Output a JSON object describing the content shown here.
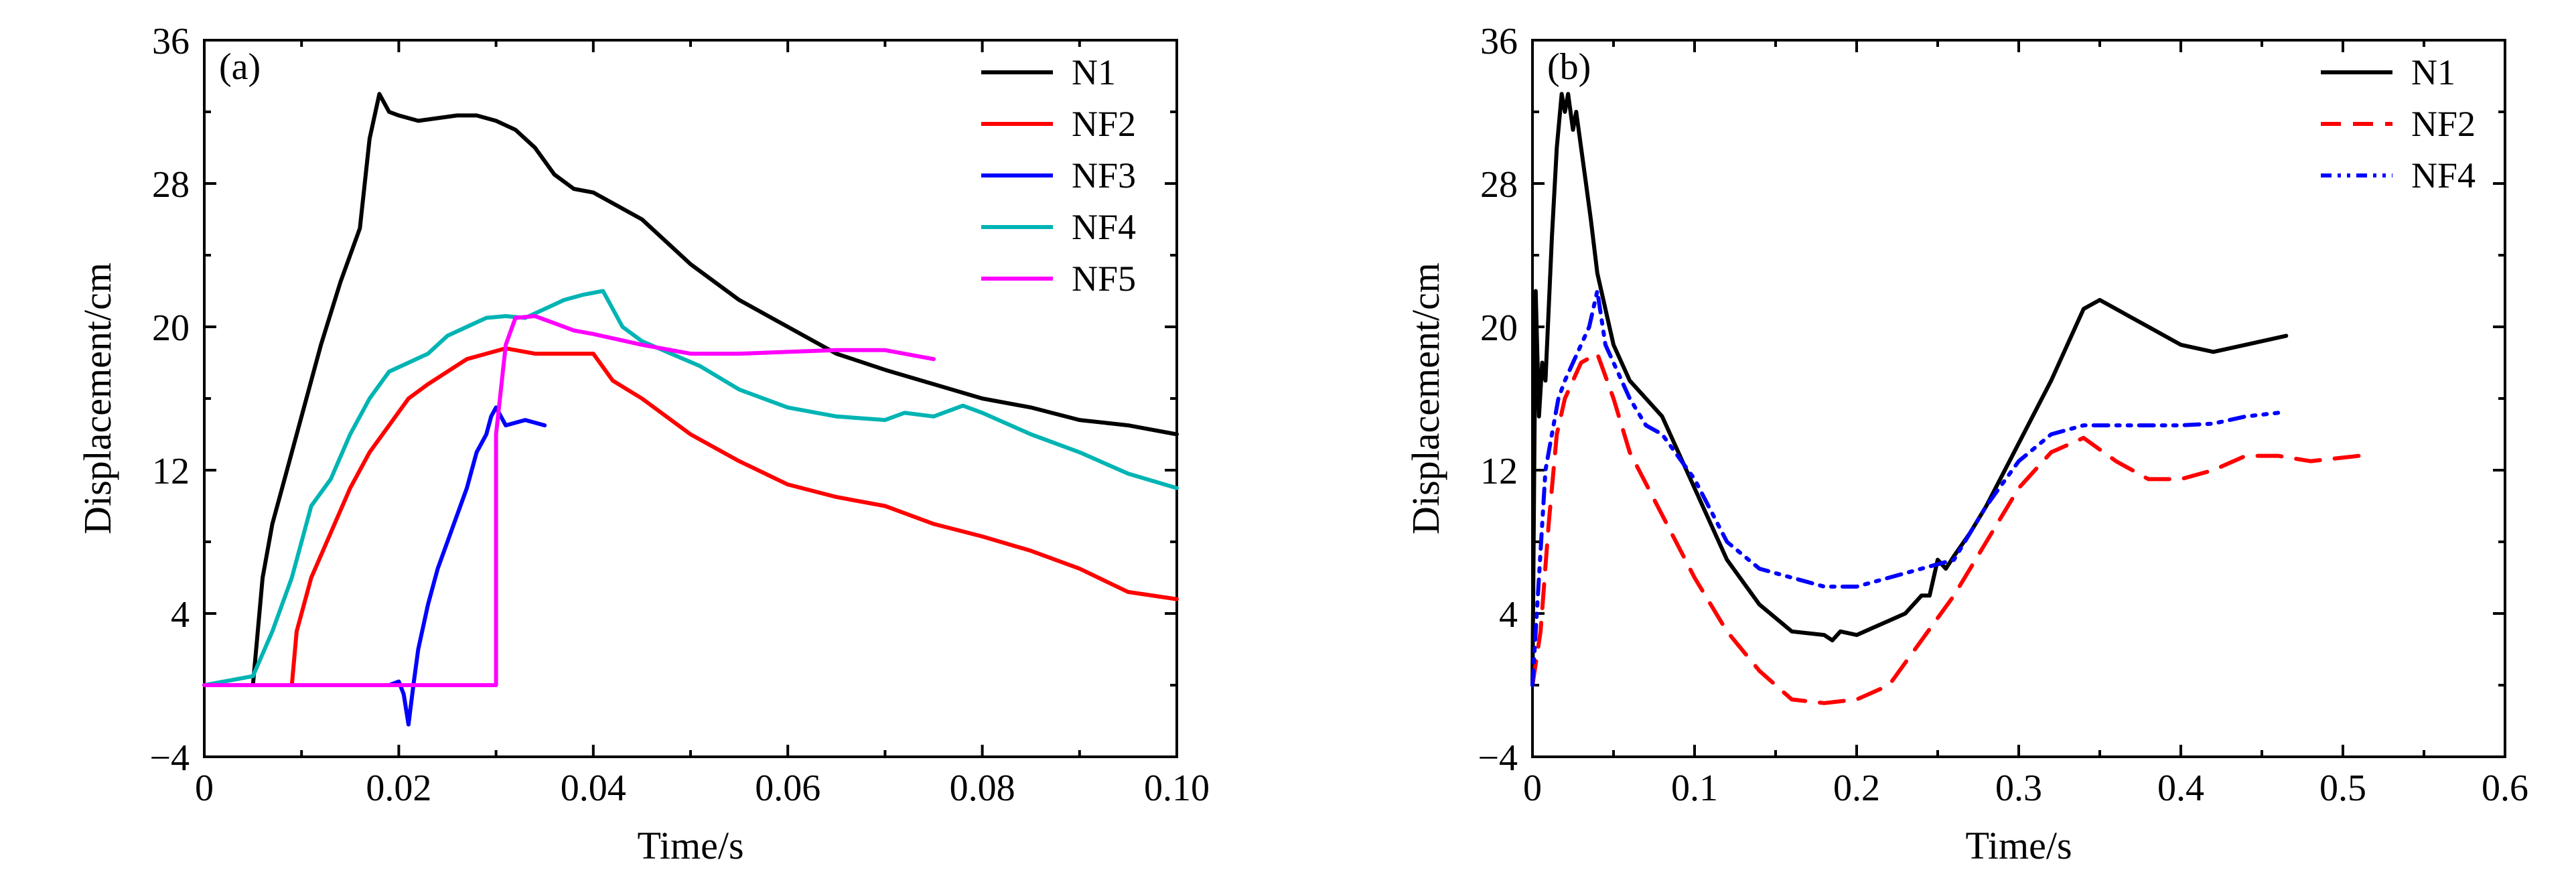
{
  "chart_data": [
    {
      "panel_label": "(a)",
      "type": "line",
      "xlabel": "Time/s",
      "ylabel": "Displacement/cm",
      "xlim": [
        0,
        0.1
      ],
      "ylim": [
        -4,
        36
      ],
      "xticks": [
        0,
        0.02,
        0.04,
        0.06,
        0.08,
        0.1
      ],
      "xtick_labels": [
        "0",
        "0.02",
        "0.04",
        "0.06",
        "0.08",
        "0.10"
      ],
      "yticks": [
        -4,
        4,
        12,
        20,
        28,
        36
      ],
      "ytick_labels": [
        "−4",
        "4",
        "12",
        "20",
        "28",
        "36"
      ],
      "grid": false,
      "legend_position": "top-right",
      "series": [
        {
          "name": "N1",
          "color": "#000000",
          "dash": "solid",
          "x": [
            0,
            0.005,
            0.006,
            0.007,
            0.008,
            0.01,
            0.012,
            0.014,
            0.016,
            0.017,
            0.018,
            0.019,
            0.02,
            0.022,
            0.026,
            0.028,
            0.03,
            0.032,
            0.034,
            0.036,
            0.038,
            0.04,
            0.045,
            0.05,
            0.055,
            0.06,
            0.065,
            0.07,
            0.075,
            0.08,
            0.085,
            0.09,
            0.095,
            0.1
          ],
          "y": [
            0,
            0,
            6,
            9,
            11,
            15,
            19,
            22.5,
            25.5,
            30.5,
            33,
            32,
            31.8,
            31.5,
            31.8,
            31.8,
            31.5,
            31,
            30,
            28.5,
            27.7,
            27.5,
            26,
            23.5,
            21.5,
            20,
            18.5,
            17.6,
            16.8,
            16,
            15.5,
            14.8,
            14.5,
            14
          ]
        },
        {
          "name": "NF2",
          "color": "#ff0000",
          "dash": "solid",
          "x": [
            0,
            0.009,
            0.0095,
            0.011,
            0.013,
            0.015,
            0.017,
            0.019,
            0.021,
            0.023,
            0.025,
            0.027,
            0.029,
            0.031,
            0.034,
            0.036,
            0.038,
            0.04,
            0.042,
            0.045,
            0.05,
            0.055,
            0.06,
            0.065,
            0.07,
            0.075,
            0.08,
            0.085,
            0.09,
            0.095,
            0.1
          ],
          "y": [
            0,
            0,
            3,
            6,
            8.5,
            11,
            13,
            14.5,
            16,
            16.8,
            17.5,
            18.2,
            18.5,
            18.8,
            18.5,
            18.5,
            18.5,
            18.5,
            17,
            16,
            14,
            12.5,
            11.2,
            10.5,
            10,
            9,
            8.3,
            7.5,
            6.5,
            5.2,
            4.8
          ]
        },
        {
          "name": "NF3",
          "color": "#0000ff",
          "dash": "solid",
          "x": [
            0,
            0.019,
            0.02,
            0.0205,
            0.021,
            0.0215,
            0.022,
            0.023,
            0.024,
            0.025,
            0.026,
            0.027,
            0.028,
            0.029,
            0.0295,
            0.03,
            0.031,
            0.033,
            0.035
          ],
          "y": [
            0,
            0,
            0.2,
            -0.5,
            -2.2,
            0,
            2,
            4.5,
            6.5,
            8,
            9.5,
            11,
            13,
            14,
            15,
            15.5,
            14.5,
            14.8,
            14.5
          ]
        },
        {
          "name": "NF4",
          "color": "#00b4b4",
          "dash": "solid",
          "x": [
            0,
            0.005,
            0.007,
            0.009,
            0.011,
            0.013,
            0.015,
            0.017,
            0.019,
            0.021,
            0.023,
            0.025,
            0.027,
            0.029,
            0.031,
            0.033,
            0.035,
            0.037,
            0.039,
            0.041,
            0.043,
            0.045,
            0.048,
            0.051,
            0.055,
            0.06,
            0.065,
            0.07,
            0.072,
            0.075,
            0.078,
            0.08,
            0.085,
            0.09,
            0.095,
            0.1
          ],
          "y": [
            0,
            0.5,
            3,
            6,
            10,
            11.5,
            14,
            16,
            17.5,
            18,
            18.5,
            19.5,
            20,
            20.5,
            20.6,
            20.5,
            21,
            21.5,
            21.8,
            22,
            20,
            19.2,
            18.5,
            17.8,
            16.5,
            15.5,
            15,
            14.8,
            15.2,
            15,
            15.6,
            15.2,
            14,
            13,
            11.8,
            11
          ]
        },
        {
          "name": "NF5",
          "color": "#ff00ff",
          "dash": "solid",
          "x": [
            0,
            0.03,
            0.03,
            0.031,
            0.032,
            0.034,
            0.036,
            0.038,
            0.04,
            0.045,
            0.05,
            0.055,
            0.06,
            0.065,
            0.07,
            0.075
          ],
          "y": [
            0,
            0,
            14,
            19,
            20.5,
            20.6,
            20.2,
            19.8,
            19.6,
            19,
            18.5,
            18.5,
            18.6,
            18.7,
            18.7,
            18.2
          ]
        }
      ]
    },
    {
      "panel_label": "(b)",
      "type": "line",
      "xlabel": "Time/s",
      "ylabel": "Displacement/cm",
      "xlim": [
        0,
        0.6
      ],
      "ylim": [
        -4,
        36
      ],
      "xticks": [
        0,
        0.1,
        0.2,
        0.3,
        0.4,
        0.5,
        0.6
      ],
      "xtick_labels": [
        "0",
        "0.1",
        "0.2",
        "0.3",
        "0.4",
        "0.5",
        "0.6"
      ],
      "yticks": [
        -4,
        4,
        12,
        20,
        28,
        36
      ],
      "ytick_labels": [
        "−4",
        "4",
        "12",
        "20",
        "28",
        "36"
      ],
      "grid": false,
      "legend_position": "top-right",
      "series": [
        {
          "name": "N1",
          "color": "#000000",
          "dash": "solid",
          "x": [
            0,
            0.002,
            0.004,
            0.006,
            0.008,
            0.01,
            0.012,
            0.015,
            0.018,
            0.02,
            0.022,
            0.025,
            0.027,
            0.03,
            0.033,
            0.036,
            0.04,
            0.05,
            0.06,
            0.07,
            0.08,
            0.09,
            0.1,
            0.12,
            0.14,
            0.16,
            0.18,
            0.185,
            0.19,
            0.2,
            0.21,
            0.22,
            0.23,
            0.24,
            0.245,
            0.25,
            0.255,
            0.26,
            0.27,
            0.28,
            0.3,
            0.32,
            0.34,
            0.35,
            0.36,
            0.38,
            0.4,
            0.42,
            0.44,
            0.465
          ],
          "y": [
            0,
            22,
            15,
            18,
            17,
            21,
            25,
            30,
            33,
            32,
            33,
            31,
            32,
            30,
            28,
            26,
            23,
            19,
            17,
            16,
            15,
            13,
            11,
            7,
            4.5,
            3,
            2.8,
            2.5,
            3,
            2.8,
            3.2,
            3.6,
            4,
            5,
            5,
            7,
            6.5,
            7.2,
            8.5,
            10,
            13.5,
            17,
            21,
            21.5,
            21,
            20,
            19,
            18.6,
            19,
            19.5
          ]
        },
        {
          "name": "NF2",
          "color": "#ff0000",
          "dash": "dashed",
          "x": [
            0,
            0.005,
            0.01,
            0.015,
            0.02,
            0.03,
            0.04,
            0.05,
            0.06,
            0.08,
            0.1,
            0.12,
            0.14,
            0.16,
            0.18,
            0.2,
            0.22,
            0.24,
            0.26,
            0.28,
            0.3,
            0.32,
            0.34,
            0.36,
            0.38,
            0.4,
            0.42,
            0.44,
            0.46,
            0.48,
            0.51
          ],
          "y": [
            0,
            3,
            9,
            14,
            16,
            18,
            18.5,
            16,
            13,
            9.5,
            6,
            3,
            0.8,
            -0.8,
            -1,
            -0.8,
            0,
            2.5,
            5,
            8,
            11,
            13,
            13.8,
            12.5,
            11.5,
            11.5,
            12,
            12.8,
            12.8,
            12.5,
            12.8
          ]
        },
        {
          "name": "NF4",
          "color": "#0000ff",
          "dash": "dashdotdot",
          "x": [
            0,
            0.004,
            0.008,
            0.012,
            0.016,
            0.02,
            0.025,
            0.03,
            0.035,
            0.04,
            0.045,
            0.05,
            0.06,
            0.07,
            0.08,
            0.1,
            0.12,
            0.14,
            0.16,
            0.18,
            0.2,
            0.22,
            0.24,
            0.26,
            0.28,
            0.3,
            0.32,
            0.34,
            0.36,
            0.38,
            0.4,
            0.42,
            0.44,
            0.46
          ],
          "y": [
            0,
            6,
            12,
            14,
            16,
            17,
            18,
            19,
            20,
            22,
            19,
            18,
            16,
            14.5,
            14,
            11.5,
            8,
            6.5,
            6,
            5.5,
            5.5,
            6,
            6.5,
            7,
            10,
            12.5,
            14,
            14.5,
            14.5,
            14.5,
            14.5,
            14.6,
            15,
            15.2
          ]
        }
      ]
    }
  ]
}
